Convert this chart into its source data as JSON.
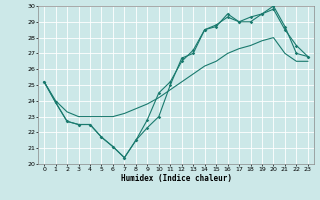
{
  "xlabel": "Humidex (Indice chaleur)",
  "bg_color": "#cce8e8",
  "grid_color": "#ffffff",
  "line_color": "#1a7a6e",
  "xlim": [
    -0.5,
    23.5
  ],
  "ylim": [
    20,
    30
  ],
  "yticks": [
    20,
    21,
    22,
    23,
    24,
    25,
    26,
    27,
    28,
    29,
    30
  ],
  "xticks": [
    0,
    1,
    2,
    3,
    4,
    5,
    6,
    7,
    8,
    9,
    10,
    11,
    12,
    13,
    14,
    15,
    16,
    17,
    18,
    19,
    20,
    21,
    22,
    23
  ],
  "s1_x": [
    0,
    1,
    2,
    3,
    4,
    5,
    6,
    7,
    8,
    9,
    10,
    11,
    12,
    13,
    14,
    15,
    16,
    17,
    18,
    19,
    20,
    21,
    22,
    23
  ],
  "s1_y": [
    25.2,
    23.9,
    22.7,
    22.5,
    22.5,
    21.7,
    21.1,
    20.4,
    21.5,
    22.3,
    23.0,
    25.0,
    26.7,
    27.0,
    28.5,
    28.7,
    29.5,
    29.0,
    29.0,
    29.5,
    30.0,
    28.7,
    27.0,
    26.8
  ],
  "s2_x": [
    0,
    1,
    2,
    3,
    4,
    5,
    6,
    7,
    8,
    9,
    10,
    11,
    12,
    13,
    14,
    15,
    16,
    17,
    18,
    19,
    20,
    21,
    22,
    23
  ],
  "s2_y": [
    25.2,
    23.9,
    22.7,
    22.5,
    22.5,
    21.7,
    21.1,
    20.4,
    21.5,
    22.8,
    24.5,
    25.2,
    26.5,
    27.2,
    28.5,
    28.8,
    29.3,
    29.0,
    29.3,
    29.5,
    29.8,
    28.5,
    27.5,
    26.8
  ],
  "s3_x": [
    0,
    1,
    2,
    3,
    4,
    5,
    6,
    7,
    8,
    9,
    10,
    11,
    12,
    13,
    14,
    15,
    16,
    17,
    18,
    19,
    20,
    21,
    22,
    23
  ],
  "s3_y": [
    25.2,
    24.0,
    23.3,
    23.0,
    23.0,
    23.0,
    23.0,
    23.2,
    23.5,
    23.8,
    24.2,
    24.7,
    25.2,
    25.7,
    26.2,
    26.5,
    27.0,
    27.3,
    27.5,
    27.8,
    28.0,
    27.0,
    26.5,
    26.5
  ]
}
